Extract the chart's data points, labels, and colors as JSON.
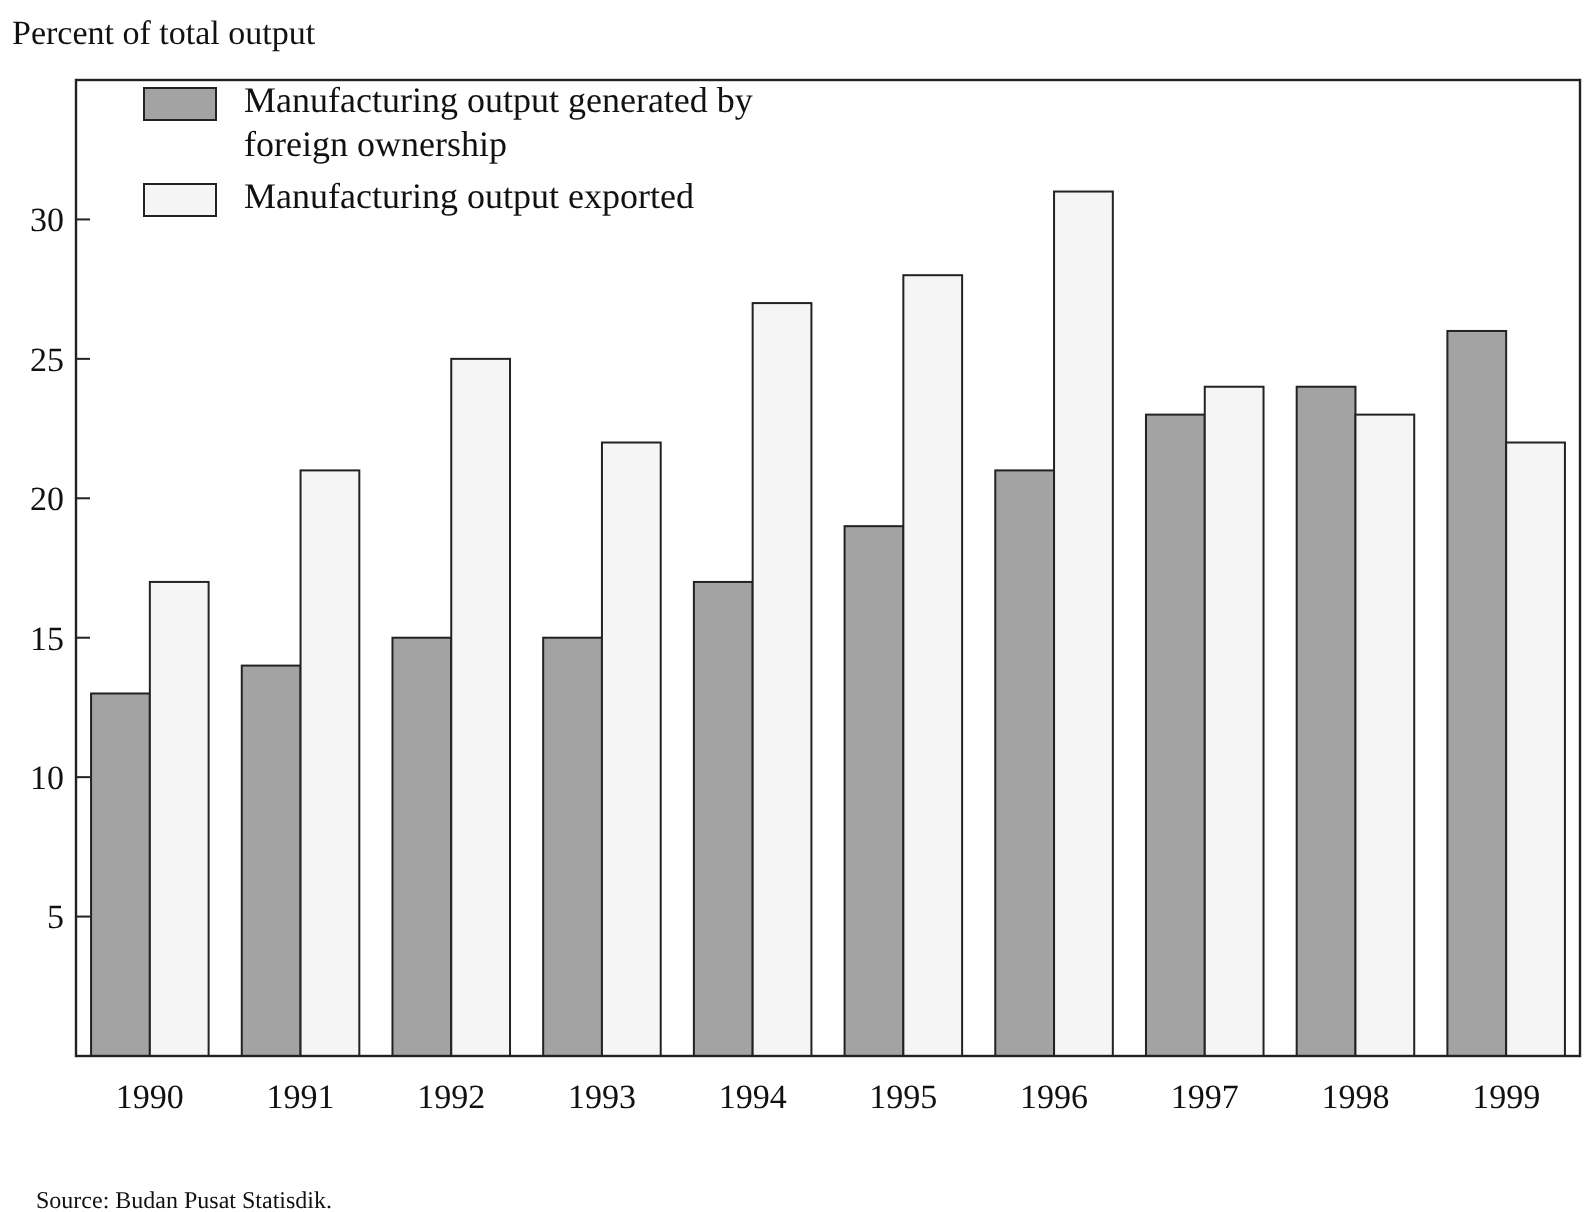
{
  "chart_data": {
    "type": "bar",
    "ylabel": "Percent of total output",
    "categories": [
      "1990",
      "1991",
      "1992",
      "1993",
      "1994",
      "1995",
      "1996",
      "1997",
      "1998",
      "1999"
    ],
    "series": [
      {
        "name": "Manufacturing output generated by foreign ownership",
        "color": "#a3a3a3",
        "values": [
          13,
          14,
          15,
          15,
          17,
          19,
          21,
          23,
          24,
          26
        ]
      },
      {
        "name": "Manufacturing output exported",
        "color": "#f5f5f5",
        "values": [
          17,
          21,
          25,
          22,
          27,
          28,
          31,
          24,
          23,
          22
        ]
      }
    ],
    "ylim": [
      0,
      35
    ],
    "yticks": [
      5,
      10,
      15,
      20,
      25,
      30
    ],
    "grid": false,
    "legend": "top left",
    "annotations": [
      "Source: Budan Pusat Statisdik."
    ]
  }
}
